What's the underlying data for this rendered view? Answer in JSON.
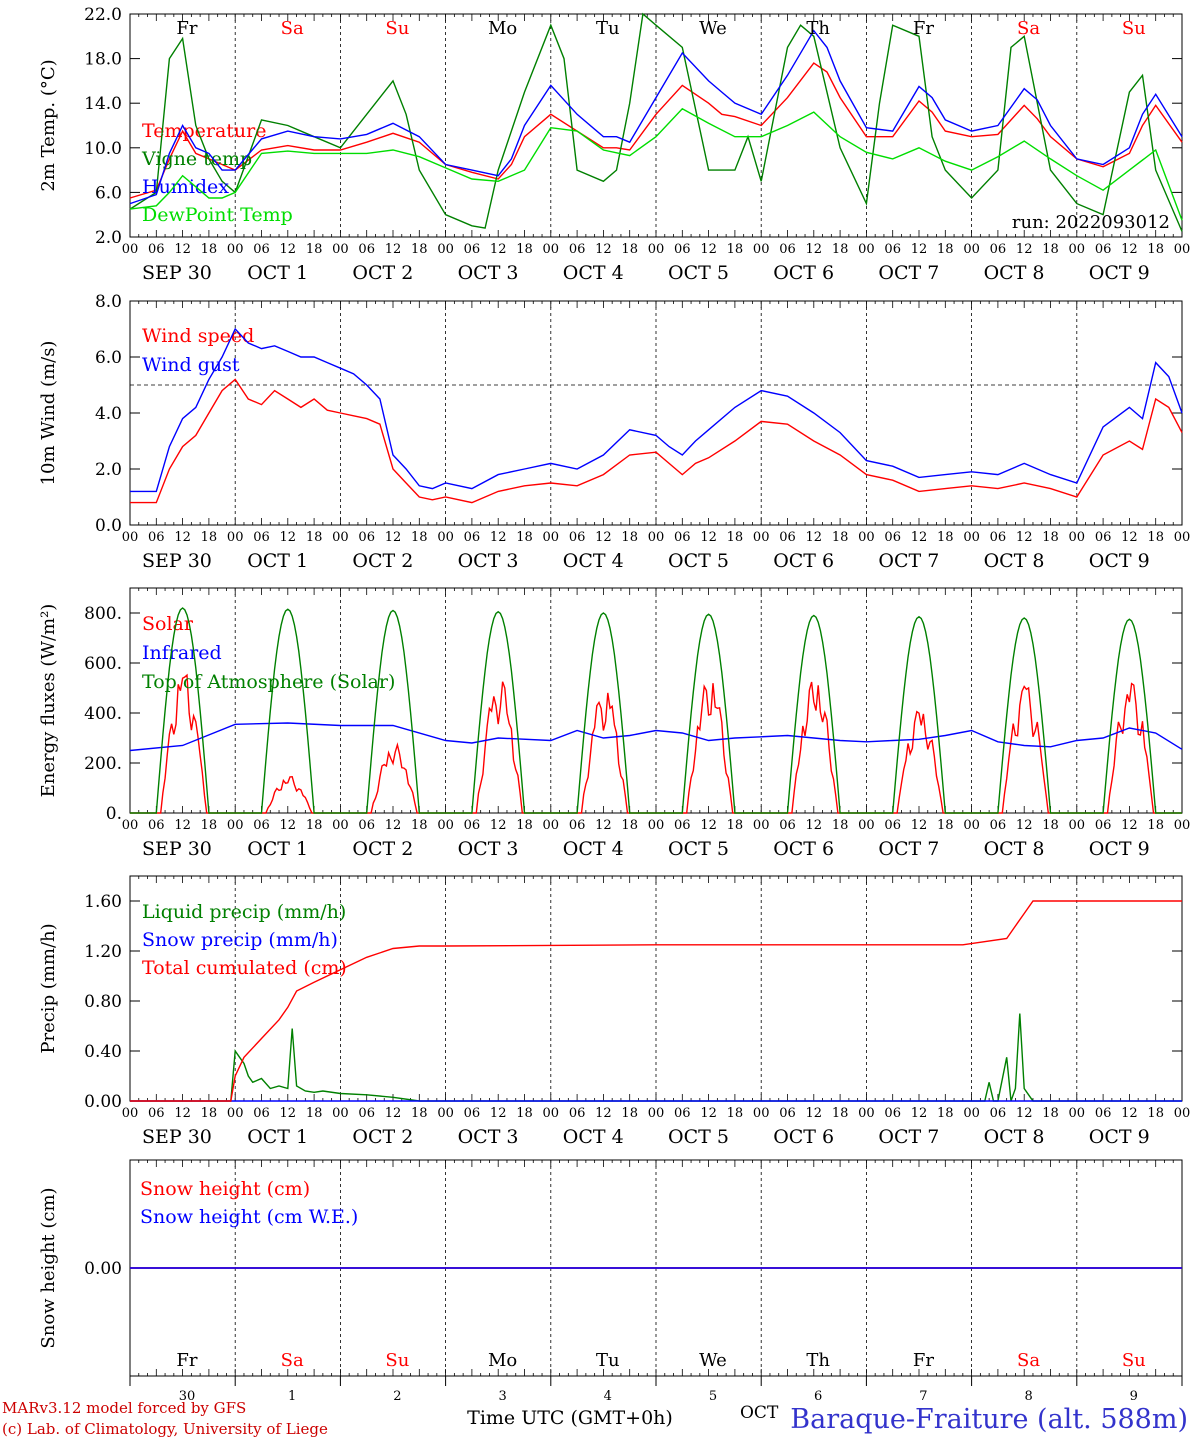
{
  "run_label": "run: 2022093012",
  "x_axis_label": "Time UTC (GMT+0h)",
  "footer": {
    "model": "MARv3.12 model forced by GFS",
    "lab": "(c) Lab. of Climatology, University of Liege",
    "station": "Baraque-Fraiture (alt. 588m)",
    "oct_label": "OCT"
  },
  "hour_ticks": [
    "00",
    "06",
    "12",
    "18"
  ],
  "date_labels": [
    "SEP 30",
    "OCT  1",
    "OCT  2",
    "OCT  3",
    "OCT  4",
    "OCT  5",
    "OCT  6",
    "OCT  7",
    "OCT  8",
    "OCT  9"
  ],
  "day_names": [
    "Fr",
    "Sa",
    "Su",
    "Mo",
    "Tu",
    "We",
    "Th",
    "Fr",
    "Sa",
    "Su"
  ],
  "weekend_days": [
    1,
    2,
    8,
    9
  ],
  "day_numbers": [
    "30",
    "1",
    "2",
    "3",
    "4",
    "5",
    "6",
    "7",
    "8",
    "9"
  ],
  "colors": {
    "red": "#ff0000",
    "blue": "#0000ff",
    "green": "#008000",
    "lime": "#00dd00",
    "black": "#000000",
    "navy": "#3333cc",
    "purple": "#800080"
  },
  "chart_data": [
    {
      "type": "line",
      "id": "temp",
      "ylabel": "2m Temp. (°C)",
      "ylim": [
        2,
        22
      ],
      "yticks": [
        "2.0",
        "6.0",
        "10.0",
        "14.0",
        "18.0",
        "22.0"
      ],
      "x_unit": "hours since SEP 30 00 UTC",
      "series": [
        {
          "name": "Temperature",
          "color": "#ff0000",
          "x": [
            0,
            6,
            9,
            12,
            15,
            18,
            21,
            24,
            30,
            36,
            42,
            48,
            54,
            60,
            66,
            72,
            78,
            84,
            87,
            90,
            96,
            102,
            108,
            111,
            114,
            120,
            126,
            132,
            135,
            138,
            144,
            150,
            156,
            159,
            162,
            168,
            174,
            180,
            183,
            186,
            192,
            198,
            204,
            207,
            210,
            216,
            222,
            228,
            231,
            234,
            240
          ],
          "y": [
            5.5,
            6.2,
            9,
            11.5,
            9.5,
            9,
            8.5,
            8.0,
            9.8,
            10.2,
            9.8,
            9.8,
            10.5,
            11.3,
            10.5,
            8.5,
            7.8,
            7.2,
            8.5,
            11,
            13,
            11.5,
            10,
            10,
            9.8,
            13,
            15.6,
            14,
            13,
            12.8,
            12,
            14.5,
            17.6,
            16.8,
            14.5,
            11,
            11,
            14.2,
            13.2,
            11.5,
            11,
            11.2,
            13.8,
            12.6,
            11,
            9,
            8.3,
            9.5,
            12,
            13.8,
            10.5
          ]
        },
        {
          "name": "Vigne temp",
          "color": "#008000",
          "x": [
            0,
            6,
            9,
            12,
            15,
            18,
            21,
            24,
            30,
            36,
            42,
            48,
            54,
            60,
            63,
            66,
            72,
            78,
            81,
            84,
            90,
            96,
            99,
            102,
            108,
            111,
            114,
            117,
            120,
            126,
            132,
            138,
            141,
            144,
            150,
            153,
            156,
            162,
            168,
            171,
            174,
            180,
            183,
            186,
            192,
            198,
            201,
            204,
            210,
            216,
            222,
            228,
            231,
            234,
            240
          ],
          "y": [
            4.5,
            6,
            18,
            19.8,
            12,
            9,
            7,
            6,
            12.5,
            12,
            11,
            10,
            13,
            16,
            13,
            8,
            4,
            3,
            2.8,
            8,
            15,
            21,
            18,
            8,
            7,
            8,
            14,
            22,
            21,
            19,
            8,
            8,
            11,
            7,
            19,
            21,
            20,
            10,
            5,
            14,
            21,
            20,
            11,
            8,
            5.5,
            8,
            19,
            20,
            8,
            5,
            4,
            15,
            16.5,
            8,
            2.5
          ]
        },
        {
          "name": "Humidex",
          "color": "#0000ff",
          "x": [
            0,
            6,
            9,
            12,
            15,
            18,
            21,
            24,
            30,
            36,
            42,
            48,
            54,
            60,
            66,
            72,
            78,
            84,
            87,
            90,
            96,
            102,
            108,
            111,
            114,
            120,
            126,
            132,
            135,
            138,
            144,
            150,
            156,
            159,
            162,
            168,
            174,
            180,
            183,
            186,
            192,
            198,
            204,
            207,
            210,
            216,
            222,
            228,
            231,
            234,
            240
          ],
          "y": [
            5,
            5.8,
            9.5,
            12,
            10,
            9.5,
            8,
            8,
            10.8,
            11.5,
            11,
            10.8,
            11.2,
            12.2,
            11,
            8.5,
            8,
            7.5,
            9,
            12,
            15.6,
            13,
            11,
            11,
            10.5,
            14.5,
            18.5,
            16,
            15,
            14,
            13,
            16.5,
            20.5,
            19,
            16,
            11.8,
            11.5,
            15.5,
            14.5,
            12.5,
            11.5,
            12,
            15.3,
            14.3,
            12,
            9,
            8.5,
            10,
            13,
            14.8,
            11
          ]
        },
        {
          "name": "DewPoint Temp",
          "color": "#00dd00",
          "x": [
            0,
            6,
            9,
            12,
            15,
            18,
            21,
            24,
            30,
            36,
            42,
            48,
            54,
            60,
            66,
            72,
            78,
            84,
            90,
            96,
            102,
            108,
            114,
            120,
            126,
            132,
            138,
            144,
            150,
            156,
            162,
            168,
            174,
            180,
            186,
            192,
            198,
            204,
            210,
            216,
            222,
            228,
            234,
            240
          ],
          "y": [
            4.5,
            4.8,
            6,
            7.5,
            6.5,
            5.5,
            5.5,
            6,
            9.5,
            9.7,
            9.5,
            9.5,
            9.5,
            9.8,
            9.2,
            8.2,
            7.2,
            7,
            8,
            11.8,
            11.5,
            9.8,
            9.3,
            11,
            13.5,
            12.2,
            11,
            11,
            12,
            13.2,
            11,
            9.6,
            9,
            10,
            8.8,
            8,
            9.2,
            10.6,
            9,
            7.5,
            6.2,
            8,
            9.8,
            3.5
          ]
        }
      ]
    },
    {
      "type": "line",
      "id": "wind",
      "ylabel": "10m Wind (m/s)",
      "ylim": [
        0,
        8
      ],
      "yticks": [
        "0.0",
        "2.0",
        "4.0",
        "6.0",
        "8.0"
      ],
      "ref_line": 5,
      "series": [
        {
          "name": "Wind speed",
          "color": "#ff0000",
          "x": [
            0,
            6,
            9,
            12,
            15,
            18,
            21,
            24,
            27,
            30,
            33,
            36,
            39,
            42,
            45,
            48,
            51,
            54,
            57,
            60,
            63,
            66,
            69,
            72,
            78,
            84,
            90,
            96,
            102,
            108,
            114,
            120,
            123,
            126,
            129,
            132,
            138,
            144,
            150,
            156,
            162,
            168,
            174,
            180,
            186,
            192,
            198,
            204,
            210,
            216,
            222,
            228,
            231,
            234,
            237,
            240
          ],
          "y": [
            0.8,
            0.8,
            2,
            2.8,
            3.2,
            4,
            4.8,
            5.2,
            4.5,
            4.3,
            4.8,
            4.5,
            4.2,
            4.5,
            4.1,
            4,
            3.9,
            3.8,
            3.6,
            2,
            1.5,
            1,
            0.9,
            1,
            0.8,
            1.2,
            1.4,
            1.5,
            1.4,
            1.8,
            2.5,
            2.6,
            2.2,
            1.8,
            2.2,
            2.4,
            3,
            3.7,
            3.6,
            3,
            2.5,
            1.8,
            1.6,
            1.2,
            1.3,
            1.4,
            1.3,
            1.5,
            1.3,
            1.0,
            2.5,
            3,
            2.7,
            4.5,
            4.2,
            3.3
          ]
        },
        {
          "name": "Wind gust",
          "color": "#0000ff",
          "x": [
            0,
            6,
            9,
            12,
            15,
            18,
            21,
            24,
            27,
            30,
            33,
            36,
            39,
            42,
            45,
            48,
            51,
            54,
            57,
            60,
            63,
            66,
            69,
            72,
            78,
            84,
            90,
            96,
            102,
            108,
            114,
            120,
            123,
            126,
            129,
            132,
            138,
            144,
            150,
            156,
            162,
            168,
            174,
            180,
            186,
            192,
            198,
            204,
            210,
            216,
            222,
            228,
            231,
            234,
            237,
            240
          ],
          "y": [
            1.2,
            1.2,
            2.8,
            3.8,
            4.2,
            5.2,
            6,
            7,
            6.5,
            6.3,
            6.4,
            6.2,
            6,
            6,
            5.8,
            5.6,
            5.4,
            5,
            4.5,
            2.5,
            2,
            1.4,
            1.3,
            1.5,
            1.3,
            1.8,
            2,
            2.2,
            2.0,
            2.5,
            3.4,
            3.2,
            2.8,
            2.5,
            3,
            3.4,
            4.2,
            4.8,
            4.6,
            4,
            3.3,
            2.3,
            2.1,
            1.7,
            1.8,
            1.9,
            1.8,
            2.2,
            1.8,
            1.5,
            3.5,
            4.2,
            3.8,
            5.8,
            5.3,
            4.0
          ]
        }
      ]
    },
    {
      "type": "line",
      "id": "energy",
      "ylabel": "Energy fluxes (W/m²)",
      "ylim": [
        0,
        900
      ],
      "yticks": [
        "0.",
        "200.",
        "400.",
        "600.",
        "800."
      ],
      "series": [
        {
          "name": "Solar",
          "color": "#ff0000",
          "day_peaks": [
            580,
            150,
            280,
            540,
            500,
            550,
            550,
            430,
            540,
            540
          ]
        },
        {
          "name": "Infrared",
          "color": "#0000ff",
          "x": [
            0,
            12,
            24,
            36,
            48,
            60,
            72,
            78,
            84,
            96,
            102,
            108,
            114,
            120,
            126,
            132,
            138,
            144,
            150,
            156,
            162,
            168,
            174,
            180,
            186,
            192,
            198,
            204,
            210,
            216,
            222,
            228,
            234,
            240
          ],
          "y": [
            250,
            270,
            355,
            360,
            350,
            350,
            290,
            280,
            300,
            290,
            330,
            300,
            310,
            330,
            320,
            290,
            300,
            305,
            310,
            300,
            290,
            285,
            290,
            295,
            310,
            330,
            285,
            270,
            265,
            290,
            300,
            340,
            320,
            255
          ]
        },
        {
          "name": "Top of Atmosphere (Solar)",
          "color": "#008000",
          "day_peaks": [
            820,
            815,
            810,
            805,
            800,
            795,
            790,
            785,
            780,
            775
          ]
        }
      ]
    },
    {
      "type": "line",
      "id": "precip",
      "ylabel": "Precip (mm/h)",
      "ylim": [
        0,
        1.8
      ],
      "yticks": [
        "0.00",
        "0.40",
        "0.80",
        "1.20",
        "1.60"
      ],
      "series": [
        {
          "name": "Liquid precip (mm/h)",
          "color": "#008000",
          "x": [
            0,
            23,
            24,
            25,
            26,
            27,
            28,
            30,
            32,
            34,
            36,
            37,
            38,
            40,
            42,
            44,
            48,
            54,
            60,
            66,
            72,
            162,
            195,
            196,
            197,
            198,
            200,
            201,
            202,
            203,
            204,
            205,
            206,
            240
          ],
          "y": [
            0,
            0,
            0.4,
            0.35,
            0.3,
            0.2,
            0.15,
            0.18,
            0.1,
            0.12,
            0.1,
            0.58,
            0.12,
            0.08,
            0.07,
            0.08,
            0.06,
            0.05,
            0.03,
            0,
            0,
            0,
            0,
            0.15,
            0,
            0,
            0.35,
            0,
            0.1,
            0.7,
            0.1,
            0.05,
            0,
            0
          ]
        },
        {
          "name": "Snow precip (mm/h)",
          "color": "#0000ff",
          "x": [
            0,
            240
          ],
          "y": [
            0,
            0
          ]
        },
        {
          "name": "Total cumulated (cm)",
          "color": "#ff0000",
          "x": [
            0,
            23,
            24,
            26,
            30,
            34,
            36,
            38,
            42,
            48,
            54,
            60,
            66,
            72,
            120,
            190,
            200,
            202,
            204,
            206,
            240
          ],
          "y": [
            0,
            0,
            0.2,
            0.35,
            0.5,
            0.65,
            0.75,
            0.88,
            0.95,
            1.05,
            1.15,
            1.22,
            1.24,
            1.24,
            1.25,
            1.25,
            1.3,
            1.4,
            1.5,
            1.6,
            1.6
          ]
        }
      ]
    },
    {
      "type": "line",
      "id": "snow",
      "ylabel": "Snow height (cm)",
      "ylim": [
        -1,
        1
      ],
      "yticks": [
        "0.00"
      ],
      "series": [
        {
          "name": "Snow height (cm)",
          "color": "#ff0000",
          "x": [
            0,
            240
          ],
          "y": [
            0,
            0
          ]
        },
        {
          "name": "Snow height (cm W.E.)",
          "color": "#0000ff",
          "x": [
            0,
            240
          ],
          "y": [
            0,
            0
          ]
        }
      ]
    }
  ]
}
